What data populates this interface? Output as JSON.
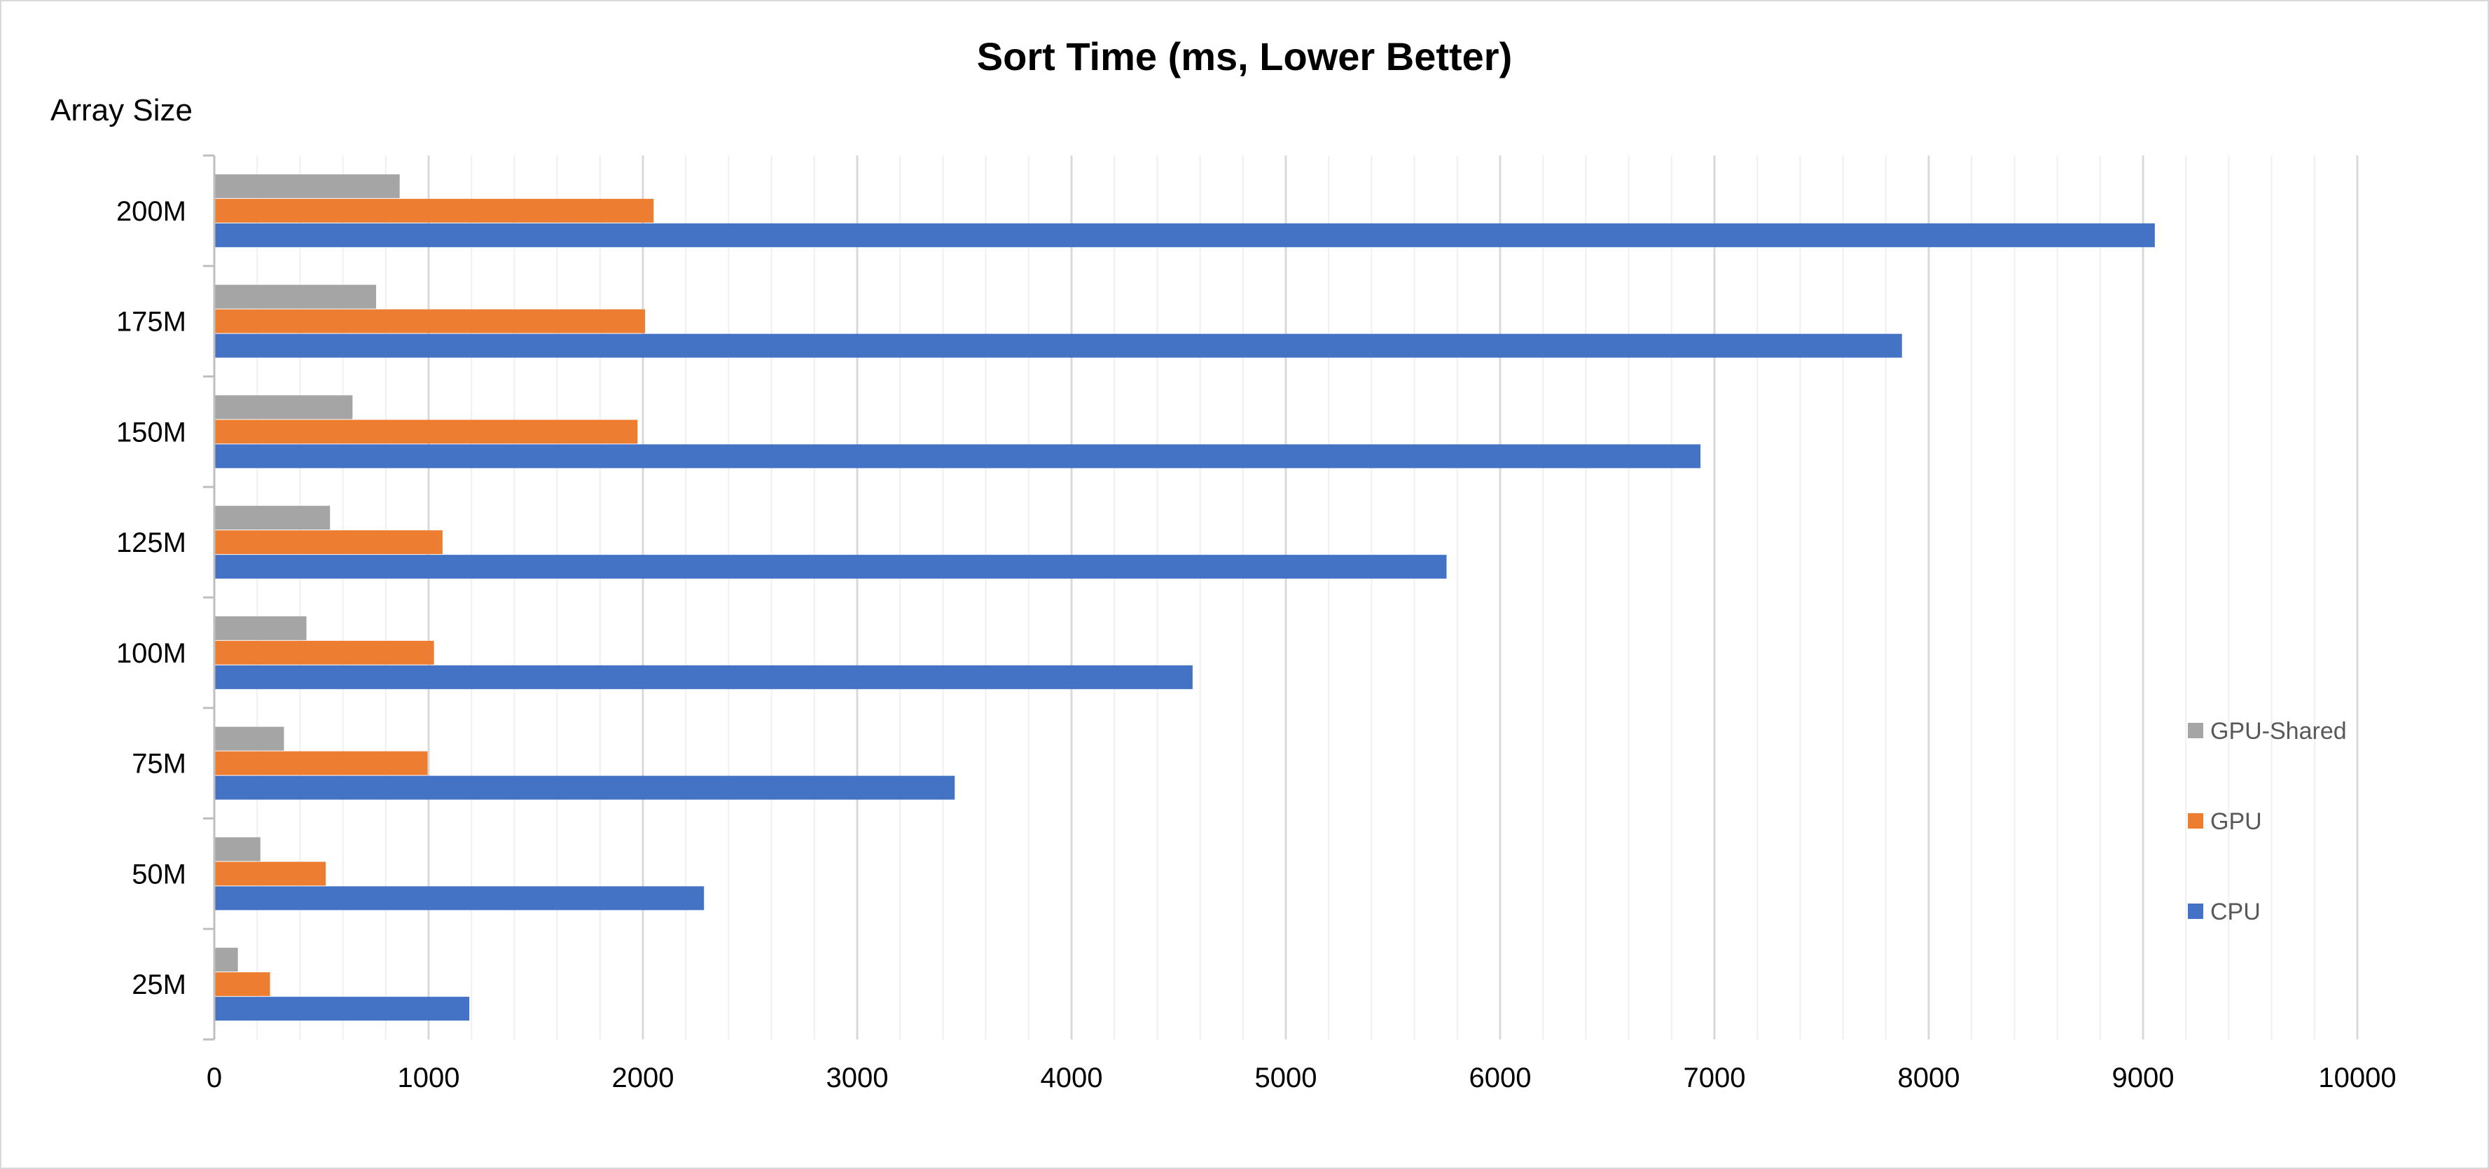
{
  "chart_data": {
    "type": "bar",
    "orientation": "horizontal",
    "title": "Sort Time (ms, Lower Better)",
    "ylabel": "Array Size",
    "xlabel": "",
    "categories": [
      "25M",
      "50M",
      "75M",
      "100M",
      "125M",
      "150M",
      "175M",
      "200M"
    ],
    "series": [
      {
        "name": "GPU-Shared",
        "color": "#a5a5a5",
        "values": [
          110,
          215,
          325,
          430,
          540,
          645,
          755,
          865
        ]
      },
      {
        "name": "GPU",
        "color": "#ed7d31",
        "values": [
          260,
          520,
          995,
          1025,
          1065,
          1975,
          2010,
          2050
        ]
      },
      {
        "name": "CPU",
        "color": "#4472c4",
        "values": [
          1190,
          2285,
          3455,
          4565,
          5750,
          6935,
          7875,
          9055
        ]
      }
    ],
    "xlim": [
      0,
      10000
    ],
    "xticks": [
      "0",
      "1000",
      "2000",
      "3000",
      "4000",
      "5000",
      "6000",
      "7000",
      "8000",
      "9000",
      "10000"
    ],
    "grid": {
      "major": true,
      "minor": true
    },
    "legend": {
      "position": "right",
      "order": [
        "GPU-Shared",
        "GPU",
        "CPU"
      ]
    }
  }
}
